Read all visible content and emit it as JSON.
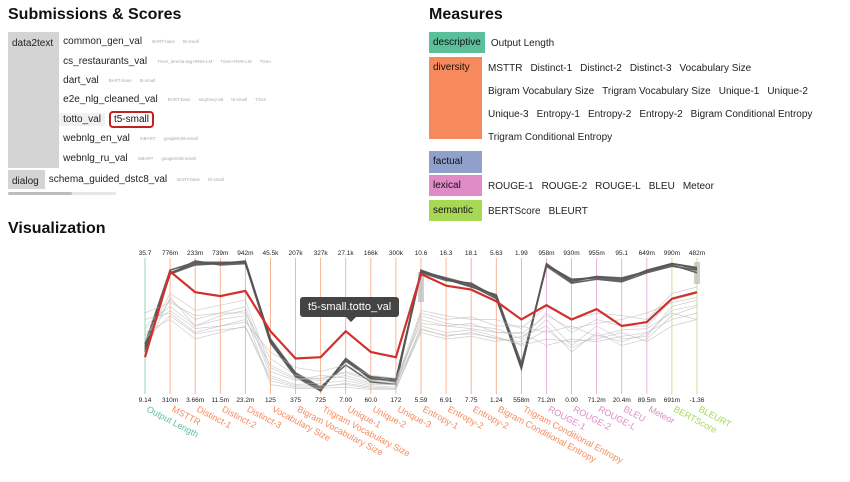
{
  "submissions": {
    "title": "Submissions & Scores",
    "groups": [
      {
        "label": "data2text",
        "datasets": [
          {
            "name": "common_gen_val",
            "tags": [
              "BART-base",
              "t5-small"
            ]
          },
          {
            "name": "cs_restaurants_val",
            "tags": [
              "TGen_lemma-tag+RNN-LM",
              "TGen+RNN-LM",
              "TGen"
            ]
          },
          {
            "name": "dart_val",
            "tags": [
              "BART-base",
              "t5-small"
            ]
          },
          {
            "name": "e2e_nlg_cleaned_val",
            "tags": [
              "BART-base",
              "seq2seq+att",
              "t5-small",
              "TGen"
            ]
          },
          {
            "name": "totto_val",
            "tags": [],
            "selected": "t5-small"
          },
          {
            "name": "webnlg_en_val",
            "tags": [
              "mBART",
              "google/mt5-small"
            ]
          },
          {
            "name": "webnlg_ru_val",
            "tags": [
              "mBART",
              "google/mt5-small"
            ]
          }
        ]
      },
      {
        "label": "dialog",
        "datasets": [
          {
            "name": "schema_guided_dstc8_val",
            "tags": [
              "BART-base",
              "t5-small"
            ]
          }
        ]
      }
    ]
  },
  "measures": {
    "title": "Measures",
    "categories": [
      {
        "name": "descriptive",
        "color": "#5bbf9c",
        "items": [
          "Output Length"
        ]
      },
      {
        "name": "diversity",
        "color": "#f78a5c",
        "items": [
          "MSTTR",
          "Distinct-1",
          "Distinct-2",
          "Distinct-3",
          "Vocabulary Size",
          "Bigram Vocabulary Size",
          "Trigram Vocabulary Size",
          "Unique-1",
          "Unique-2",
          "Unique-3",
          "Entropy-1",
          "Entropy-2",
          "Entropy-2",
          "Bigram Conditional Entropy",
          "Trigram Conditional Entropy"
        ]
      },
      {
        "name": "factual",
        "color": "#8fa0cb",
        "items": []
      },
      {
        "name": "lexical",
        "color": "#e08bc5",
        "items": [
          "ROUGE-1",
          "ROUGE-2",
          "ROUGE-L",
          "BLEU",
          "Meteor"
        ]
      },
      {
        "name": "semantic",
        "color": "#a6d855",
        "items": [
          "BERTScore",
          "BLEURT"
        ]
      }
    ]
  },
  "visualization": {
    "title": "Visualization",
    "tooltip": "t5-small.totto_val",
    "highlight_color": "#d0312d"
  },
  "chart_data": {
    "type": "parallel-coordinates",
    "axes": [
      {
        "name": "Output Length",
        "category": "descriptive",
        "max": "35.7",
        "min": "9.14"
      },
      {
        "name": "MSTTR",
        "category": "diversity",
        "max": "776m",
        "min": "310m"
      },
      {
        "name": "Distinct-1",
        "category": "diversity",
        "max": "233m",
        "min": "3.66m"
      },
      {
        "name": "Distinct-2",
        "category": "diversity",
        "max": "739m",
        "min": "11.5m"
      },
      {
        "name": "Distinct-3",
        "category": "diversity",
        "max": "942m",
        "min": "23.2m"
      },
      {
        "name": "Vocabulary Size",
        "category": "diversity",
        "max": "45.5k",
        "min": "125"
      },
      {
        "name": "Bigram Vocabulary Size",
        "category": "diversity",
        "max": "207k",
        "min": "375"
      },
      {
        "name": "Trigram Vocabulary Size",
        "category": "diversity",
        "max": "327k",
        "min": "725"
      },
      {
        "name": "Unique-1",
        "category": "diversity",
        "max": "27.1k",
        "min": "7.00"
      },
      {
        "name": "Unique-2",
        "category": "diversity",
        "max": "166k",
        "min": "60.0"
      },
      {
        "name": "Unique-3",
        "category": "diversity",
        "max": "300k",
        "min": "172"
      },
      {
        "name": "Entropy-1",
        "category": "diversity",
        "max": "10.6",
        "min": "5.59"
      },
      {
        "name": "Entropy-2",
        "category": "diversity",
        "max": "16.3",
        "min": "6.91"
      },
      {
        "name": "Entropy-2",
        "category": "diversity",
        "max": "18.1",
        "min": "7.75"
      },
      {
        "name": "Bigram Conditional Entropy",
        "category": "diversity",
        "max": "5.63",
        "min": "1.24"
      },
      {
        "name": "Trigram Conditional Entropy",
        "category": "diversity",
        "max": "1.99",
        "min": "558m"
      },
      {
        "name": "ROUGE-1",
        "category": "lexical",
        "max": "958m",
        "min": "71.2m"
      },
      {
        "name": "ROUGE-2",
        "category": "lexical",
        "max": "930m",
        "min": "0.00"
      },
      {
        "name": "ROUGE-L",
        "category": "lexical",
        "max": "955m",
        "min": "71.2m"
      },
      {
        "name": "BLEU",
        "category": "lexical",
        "max": "95.1",
        "min": "20.4m"
      },
      {
        "name": "Meteor",
        "category": "lexical",
        "max": "649m",
        "min": "89.5m"
      },
      {
        "name": "BERTScore",
        "category": "semantic",
        "max": "990m",
        "min": "691m"
      },
      {
        "name": "BLEURT",
        "category": "semantic",
        "max": "482m",
        "min": "-1.36"
      }
    ],
    "series": [
      {
        "name": "t5-small.totto_val",
        "highlight": true,
        "values": [
          0.26,
          0.92,
          0.76,
          0.73,
          0.77,
          0.46,
          0.25,
          0.26,
          0.46,
          0.3,
          0.26,
          0.9,
          0.81,
          0.78,
          0.69,
          0.55,
          0.66,
          0.55,
          0.63,
          0.5,
          0.53,
          0.71,
          0.76
        ]
      },
      {
        "values": [
          0.3,
          0.9,
          1.0,
          0.97,
          0.98,
          0.37,
          0.11,
          0.0,
          0.25,
          0.11,
          0.09,
          0.92,
          0.87,
          0.82,
          0.73,
          0.17,
          0.97,
          0.85,
          0.88,
          0.86,
          0.92,
          0.97,
          0.91
        ]
      },
      {
        "values": [
          0.36,
          0.93,
          0.99,
          0.99,
          0.99,
          0.4,
          0.14,
          0.03,
          0.2,
          0.07,
          0.05,
          0.93,
          0.86,
          0.8,
          0.74,
          0.21,
          0.96,
          0.83,
          0.86,
          0.84,
          0.91,
          0.96,
          0.93
        ]
      },
      {
        "values": [
          0.34,
          0.91,
          0.98,
          0.98,
          1.0,
          0.39,
          0.12,
          0.02,
          0.23,
          0.1,
          0.07,
          0.91,
          0.85,
          0.83,
          0.72,
          0.19,
          0.97,
          0.86,
          0.87,
          0.85,
          0.93,
          0.98,
          0.95
        ]
      },
      {
        "values": [
          0.32,
          0.9,
          0.97,
          0.98,
          0.99,
          0.38,
          0.13,
          0.01,
          0.24,
          0.09,
          0.08,
          0.92,
          0.86,
          0.81,
          0.71,
          0.18,
          0.98,
          0.84,
          0.88,
          0.87,
          0.92,
          0.98,
          0.94
        ]
      },
      {
        "values": [
          0.42,
          0.7,
          0.55,
          0.6,
          0.65,
          0.15,
          0.08,
          0.12,
          0.1,
          0.05,
          0.05,
          0.55,
          0.5,
          0.52,
          0.45,
          0.45,
          0.35,
          0.4,
          0.38,
          0.42,
          0.45,
          0.55,
          0.6
        ]
      },
      {
        "values": [
          0.5,
          0.65,
          0.5,
          0.58,
          0.62,
          0.12,
          0.05,
          0.06,
          0.08,
          0.04,
          0.03,
          0.6,
          0.55,
          0.57,
          0.5,
          0.5,
          0.45,
          0.5,
          0.42,
          0.47,
          0.48,
          0.6,
          0.55
        ]
      },
      {
        "values": [
          0.55,
          0.6,
          0.45,
          0.5,
          0.55,
          0.2,
          0.1,
          0.08,
          0.12,
          0.06,
          0.05,
          0.48,
          0.42,
          0.45,
          0.4,
          0.38,
          0.55,
          0.35,
          0.5,
          0.4,
          0.42,
          0.65,
          0.7
        ]
      },
      {
        "values": [
          0.38,
          0.75,
          0.62,
          0.66,
          0.7,
          0.18,
          0.09,
          0.1,
          0.14,
          0.08,
          0.06,
          0.58,
          0.52,
          0.5,
          0.48,
          0.4,
          0.6,
          0.45,
          0.55,
          0.5,
          0.5,
          0.7,
          0.75
        ]
      },
      {
        "values": [
          0.45,
          0.55,
          0.4,
          0.45,
          0.5,
          0.1,
          0.04,
          0.04,
          0.05,
          0.02,
          0.02,
          0.45,
          0.4,
          0.42,
          0.38,
          0.42,
          0.5,
          0.3,
          0.45,
          0.35,
          0.4,
          0.58,
          0.65
        ]
      },
      {
        "values": [
          0.6,
          0.68,
          0.58,
          0.6,
          0.6,
          0.25,
          0.12,
          0.09,
          0.15,
          0.09,
          0.07,
          0.62,
          0.58,
          0.55,
          0.55,
          0.48,
          0.65,
          0.55,
          0.6,
          0.58,
          0.55,
          0.75,
          0.8
        ]
      },
      {
        "values": [
          0.3,
          0.72,
          0.5,
          0.55,
          0.58,
          0.05,
          0.02,
          0.02,
          0.03,
          0.01,
          0.01,
          0.5,
          0.45,
          0.47,
          0.42,
          0.35,
          0.4,
          0.38,
          0.4,
          0.45,
          0.38,
          0.5,
          0.55
        ]
      },
      {
        "values": [
          0.48,
          0.62,
          0.48,
          0.5,
          0.53,
          0.3,
          0.18,
          0.15,
          0.2,
          0.12,
          0.1,
          0.52,
          0.5,
          0.48,
          0.45,
          0.44,
          0.58,
          0.48,
          0.52,
          0.55,
          0.6,
          0.68,
          0.72
        ]
      },
      {
        "values": [
          0.4,
          0.58,
          0.44,
          0.47,
          0.49,
          0.08,
          0.03,
          0.03,
          0.06,
          0.03,
          0.02,
          0.47,
          0.43,
          0.44,
          0.41,
          0.36,
          0.47,
          0.33,
          0.43,
          0.38,
          0.44,
          0.62,
          0.66
        ]
      }
    ]
  }
}
